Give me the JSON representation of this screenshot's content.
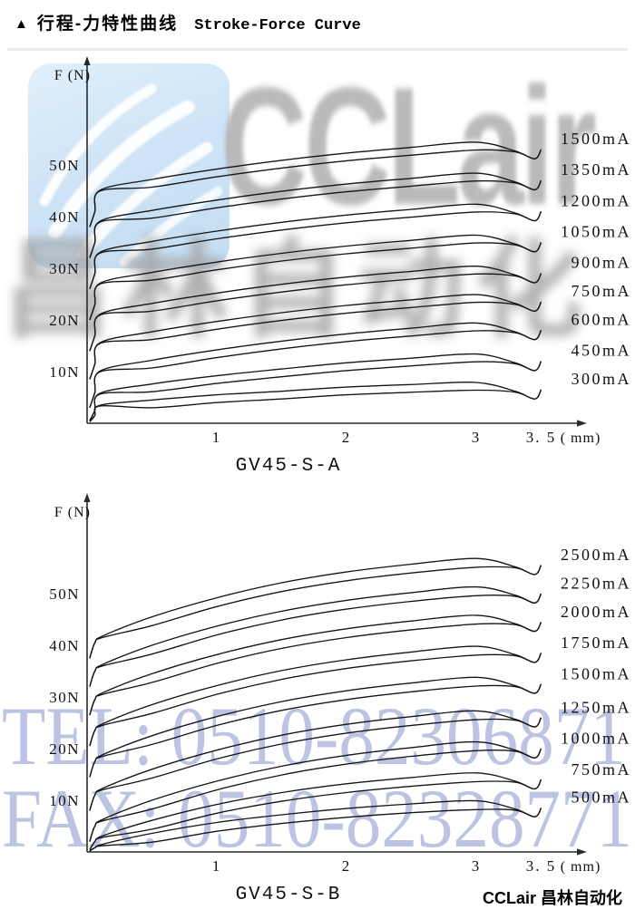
{
  "page": {
    "marker": "▲",
    "title_zh": "行程-力特性曲线",
    "title_en": "Stroke-Force Curve",
    "footer_brand": "CCLair 昌林自动化"
  },
  "watermarks": {
    "logo_text": "CCLair",
    "cn_text": "昌林自动化",
    "tel": "TEL: 0510-82306871",
    "fax": "FAX: 0510-82328771",
    "colors": {
      "blue_panel": "#c3ddf2",
      "gray_text": "#a9a9a9",
      "phone_blue": "#bdc4e3"
    }
  },
  "chart_style": {
    "line_color": "#151515",
    "axis_color": "#2a2a2a",
    "text_color": "#111111"
  },
  "chart_data": [
    {
      "type": "line",
      "title": "GV45-S-A",
      "ylabel": "F (N)",
      "x_unit": "( mm)",
      "x_ticks": [
        "1",
        "2",
        "3",
        "3. 5"
      ],
      "x_tick_values": [
        1,
        2,
        3,
        3.5
      ],
      "y_ticks": [
        "50N",
        "40N",
        "30N",
        "20N",
        "10N"
      ],
      "y_tick_values": [
        50,
        40,
        30,
        20,
        10
      ],
      "xlim": [
        0,
        3.8
      ],
      "ylim": [
        0,
        70
      ],
      "grid": false,
      "legend_position": "right-of-each-curve",
      "hysteresis_gap_N": 1.5,
      "stroke_samples_mm": [
        0.02,
        0.06,
        0.1,
        0.5,
        1.0,
        1.5,
        2.0,
        2.5,
        3.0,
        3.3,
        3.45,
        3.5
      ],
      "series": [
        {
          "label": "1500mA",
          "force_N": [
            38,
            41,
            45.1,
            47.2,
            49.2,
            50.9,
            52.3,
            53.4,
            54.4,
            52.7,
            51.2,
            53
          ]
        },
        {
          "label": "1350mA",
          "force_N": [
            32,
            35,
            39.1,
            41.2,
            43.2,
            44.9,
            46.3,
            47.4,
            48.4,
            46.7,
            45.2,
            47
          ]
        },
        {
          "label": "1200mA",
          "force_N": [
            26,
            29,
            33.1,
            35.2,
            37.2,
            38.9,
            40.3,
            41.4,
            42.4,
            40.7,
            39.2,
            41
          ]
        },
        {
          "label": "1050mA",
          "force_N": [
            20,
            23,
            27.1,
            29.2,
            31.2,
            32.9,
            34.3,
            35.4,
            36.4,
            34.7,
            33.2,
            35
          ]
        },
        {
          "label": "900mA",
          "force_N": [
            14,
            17,
            21.1,
            23.2,
            25.2,
            26.9,
            28.3,
            29.4,
            30.4,
            28.7,
            27.2,
            29
          ]
        },
        {
          "label": "750mA",
          "force_N": [
            8.5,
            11.5,
            15.6,
            17.7,
            19.7,
            21.4,
            22.8,
            23.9,
            24.9,
            23.2,
            21.7,
            23.5
          ]
        },
        {
          "label": "600mA",
          "force_N": [
            3,
            6,
            10.1,
            12.2,
            14.2,
            15.9,
            17.3,
            18.4,
            19.4,
            17.7,
            16.2,
            18
          ]
        },
        {
          "label": "450mA",
          "force_N": [
            0.5,
            2.5,
            5.8,
            7.6,
            9.2,
            10.5,
            11.7,
            12.6,
            13.4,
            11.7,
            10.2,
            12
          ]
        },
        {
          "label": "300mA",
          "force_N": [
            0.3,
            1.5,
            3.5,
            4.5,
            5.5,
            6.2,
            7.0,
            7.5,
            7.9,
            6.2,
            4.7,
            6.5
          ]
        }
      ]
    },
    {
      "type": "line",
      "title": "GV45-S-B",
      "ylabel": "F (N)",
      "x_unit": "( mm)",
      "x_ticks": [
        "1",
        "2",
        "3",
        "3. 5"
      ],
      "x_tick_values": [
        1,
        2,
        3,
        3.5
      ],
      "y_ticks": [
        "50N",
        "40N",
        "30N",
        "20N",
        "10N"
      ],
      "y_tick_values": [
        50,
        40,
        30,
        20,
        10
      ],
      "xlim": [
        0,
        3.8
      ],
      "ylim": [
        0,
        70
      ],
      "grid": false,
      "legend_position": "right-of-each-curve",
      "hysteresis_gap_N": 1.7,
      "stroke_samples_mm": [
        0.02,
        0.06,
        0.12,
        0.5,
        1.0,
        1.5,
        2.0,
        2.5,
        3.0,
        3.3,
        3.45,
        3.5
      ],
      "series": [
        {
          "label": "2500mA",
          "force_N": [
            37.5,
            40.5,
            41.8,
            45.5,
            49.2,
            52.1,
            54.2,
            55.7,
            56.8,
            55.2,
            53.7,
            55.5
          ]
        },
        {
          "label": "2250mA",
          "force_N": [
            32,
            35,
            36.3,
            40.0,
            43.7,
            46.6,
            48.7,
            50.2,
            51.3,
            49.7,
            48.2,
            50
          ]
        },
        {
          "label": "2000mA",
          "force_N": [
            26.5,
            29.5,
            30.8,
            34.5,
            38.2,
            41.1,
            43.2,
            44.7,
            45.8,
            44.2,
            42.7,
            44.5
          ]
        },
        {
          "label": "1750mA",
          "force_N": [
            20.5,
            23.5,
            24.8,
            28.5,
            32.2,
            35.1,
            37.2,
            38.7,
            39.8,
            38.2,
            36.7,
            38.5
          ]
        },
        {
          "label": "1500mA",
          "force_N": [
            14.5,
            17.5,
            18.8,
            22.5,
            26.2,
            29.1,
            31.2,
            32.7,
            33.8,
            32.2,
            30.7,
            32.5
          ]
        },
        {
          "label": "1250mA",
          "force_N": [
            8,
            11,
            12.3,
            16.0,
            19.7,
            22.6,
            24.7,
            26.2,
            27.3,
            25.7,
            24.2,
            26
          ]
        },
        {
          "label": "1000mA",
          "force_N": [
            2,
            5,
            6.3,
            10.0,
            13.7,
            16.6,
            18.7,
            20.2,
            21.3,
            19.7,
            18.2,
            20
          ]
        },
        {
          "label": "750mA",
          "force_N": [
            0.4,
            2,
            3.1,
            6.1,
            9.2,
            11.5,
            13.2,
            14.4,
            15.3,
            13.7,
            12.2,
            14
          ]
        },
        {
          "label": "500mA",
          "force_N": [
            0.2,
            0.8,
            1.5,
            3.6,
            5.7,
            7.2,
            8.4,
            9.3,
            9.9,
            8.3,
            6.8,
            8.5
          ]
        }
      ]
    }
  ]
}
